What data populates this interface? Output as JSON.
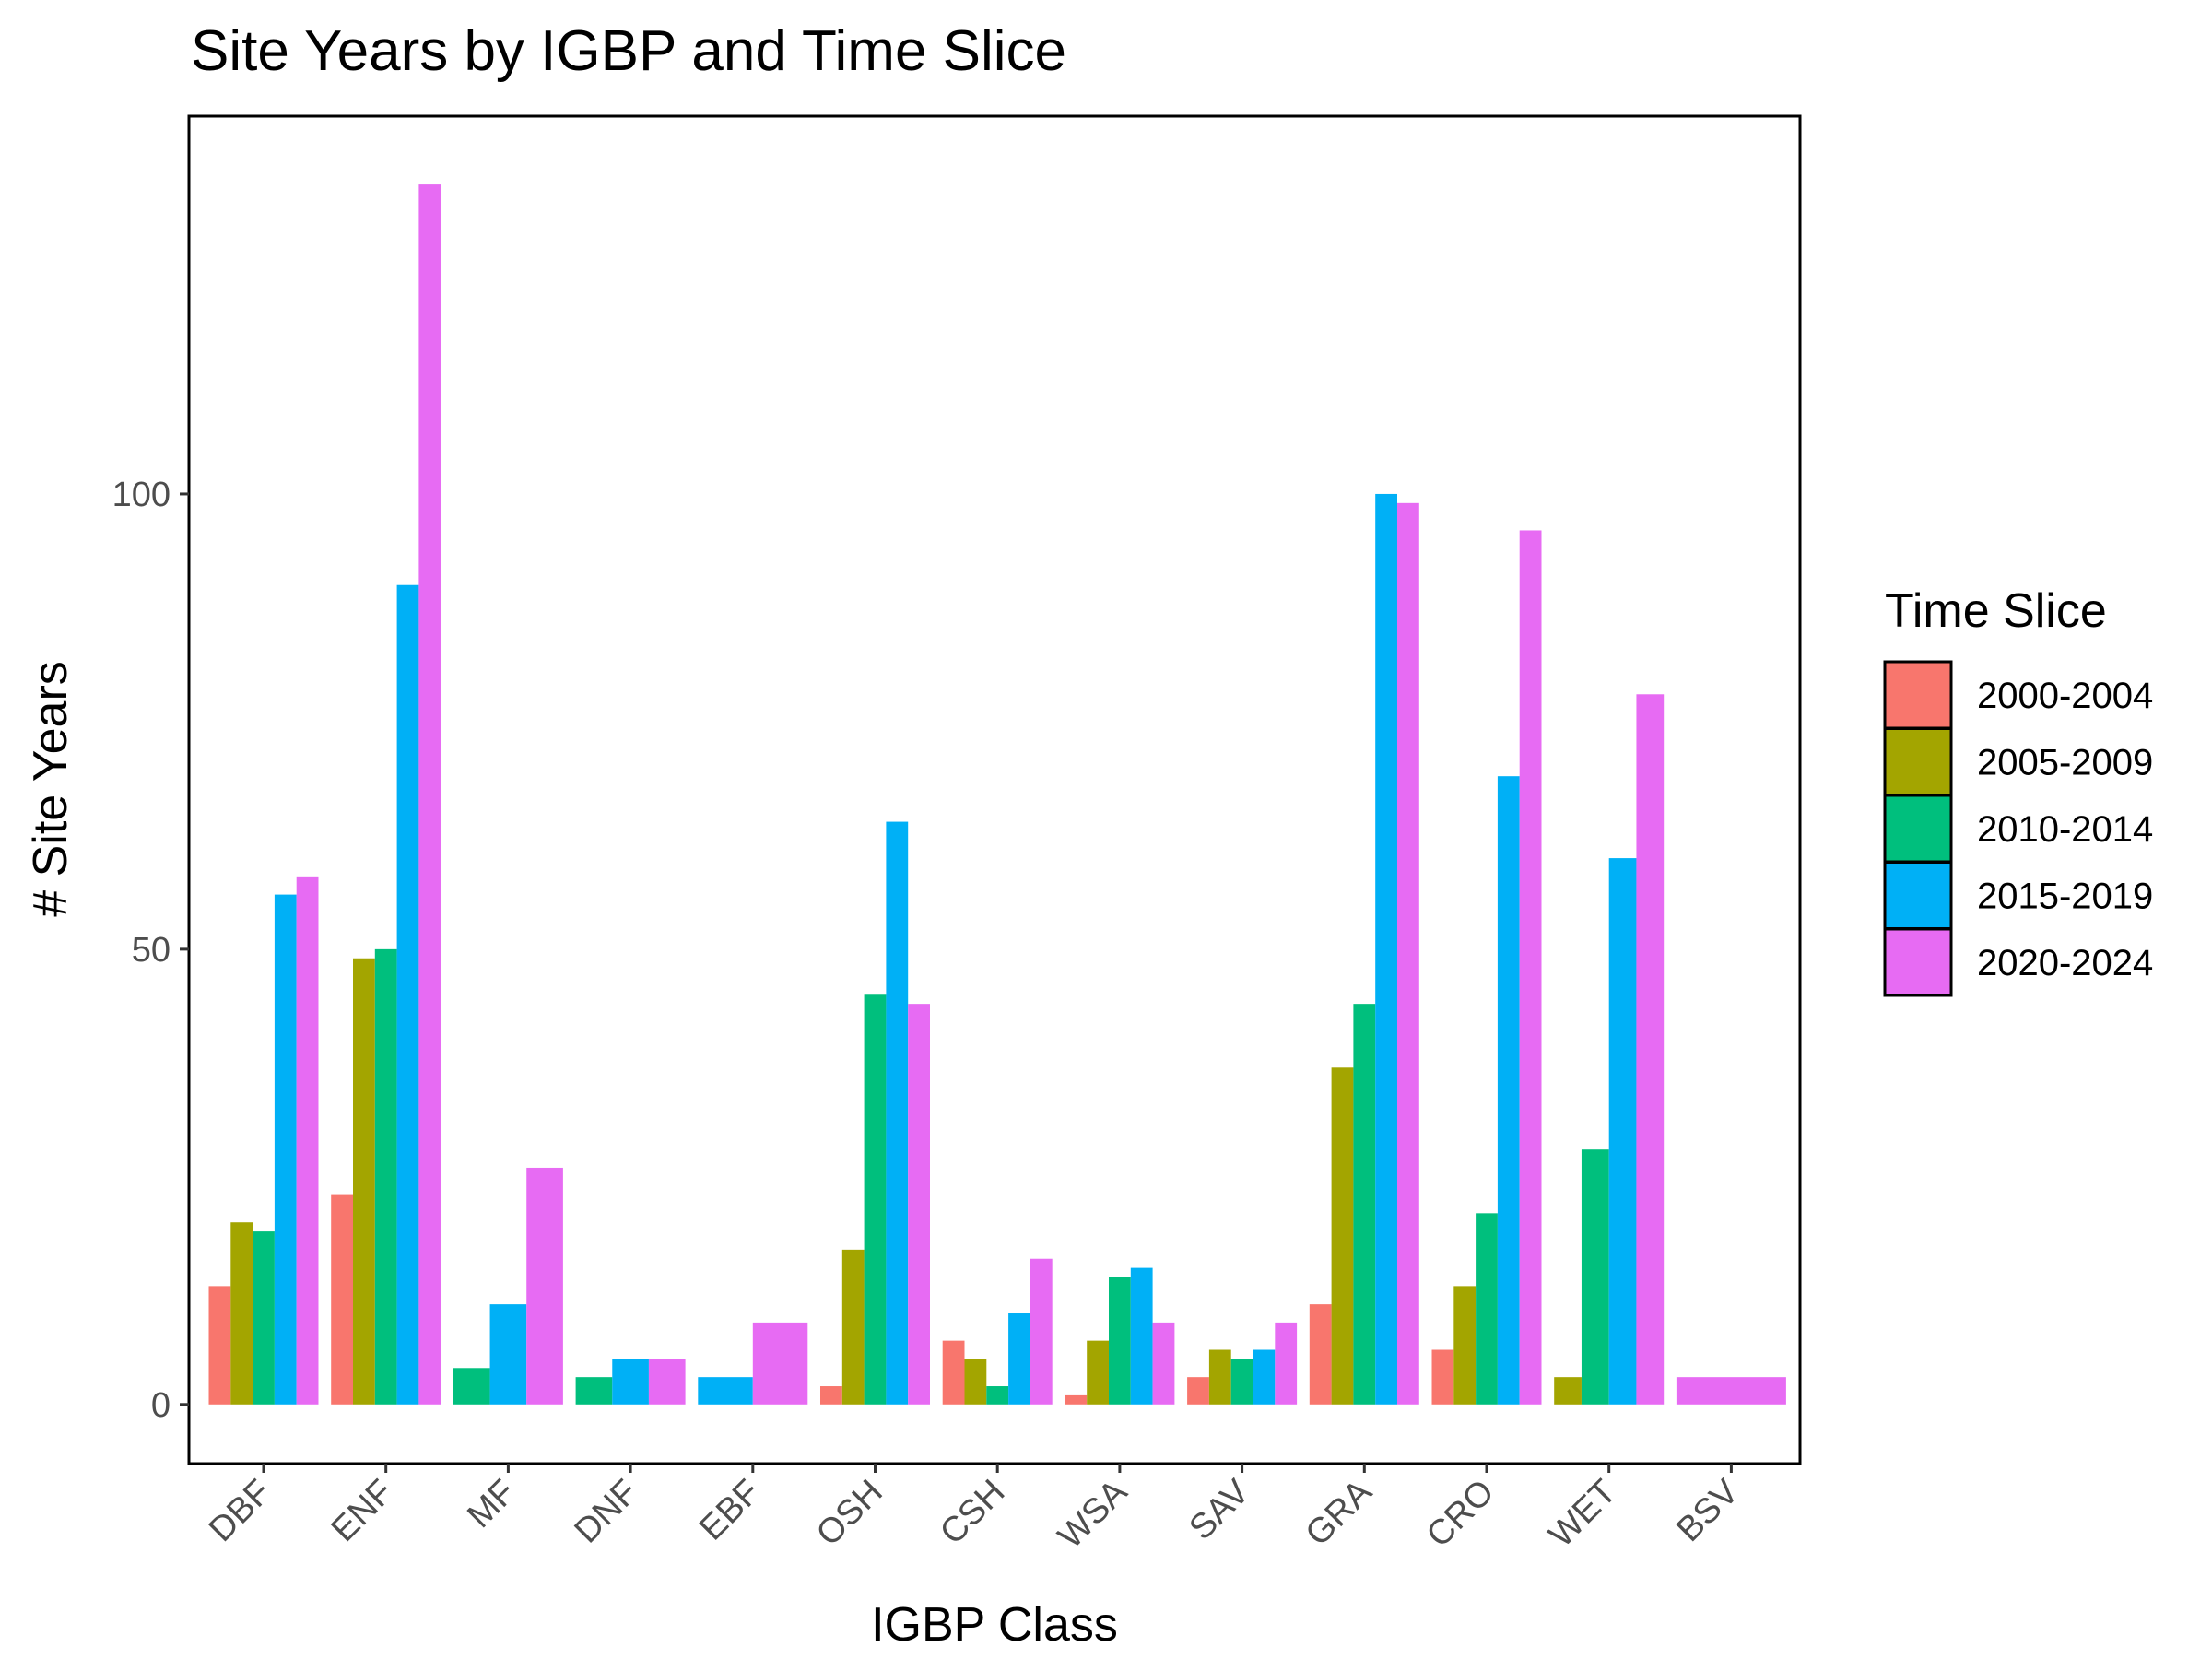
{
  "chart_data": {
    "type": "bar",
    "title": "Site Years by IGBP and Time Slice",
    "xlabel": "IGBP Class",
    "ylabel": "# Site Years",
    "categories": [
      "DBF",
      "ENF",
      "MF",
      "DNF",
      "EBF",
      "OSH",
      "CSH",
      "WSA",
      "SAV",
      "GRA",
      "CRO",
      "WET",
      "BSV"
    ],
    "y_ticks": [
      0,
      50,
      100
    ],
    "ylim": [
      -6.5,
      141.5
    ],
    "grid": false,
    "legend": {
      "title": "Time Slice",
      "position": "right"
    },
    "series": [
      {
        "name": "2000-2004",
        "color": "#F8766D",
        "values": [
          13,
          23,
          null,
          null,
          null,
          2,
          7,
          1,
          3,
          11,
          6,
          null,
          null
        ]
      },
      {
        "name": "2005-2009",
        "color": "#A3A500",
        "values": [
          20,
          49,
          null,
          null,
          null,
          17,
          5,
          7,
          6,
          37,
          13,
          3,
          null
        ]
      },
      {
        "name": "2010-2014",
        "color": "#00BF7D",
        "values": [
          19,
          50,
          4,
          3,
          null,
          45,
          2,
          14,
          5,
          44,
          21,
          28,
          null
        ]
      },
      {
        "name": "2015-2019",
        "color": "#00B0F6",
        "values": [
          56,
          90,
          11,
          5,
          3,
          64,
          10,
          15,
          6,
          100,
          69,
          60,
          null
        ]
      },
      {
        "name": "2020-2024",
        "color": "#E76BF3",
        "values": [
          58,
          134,
          26,
          5,
          9,
          44,
          16,
          9,
          9,
          99,
          96,
          78,
          3
        ]
      }
    ]
  }
}
